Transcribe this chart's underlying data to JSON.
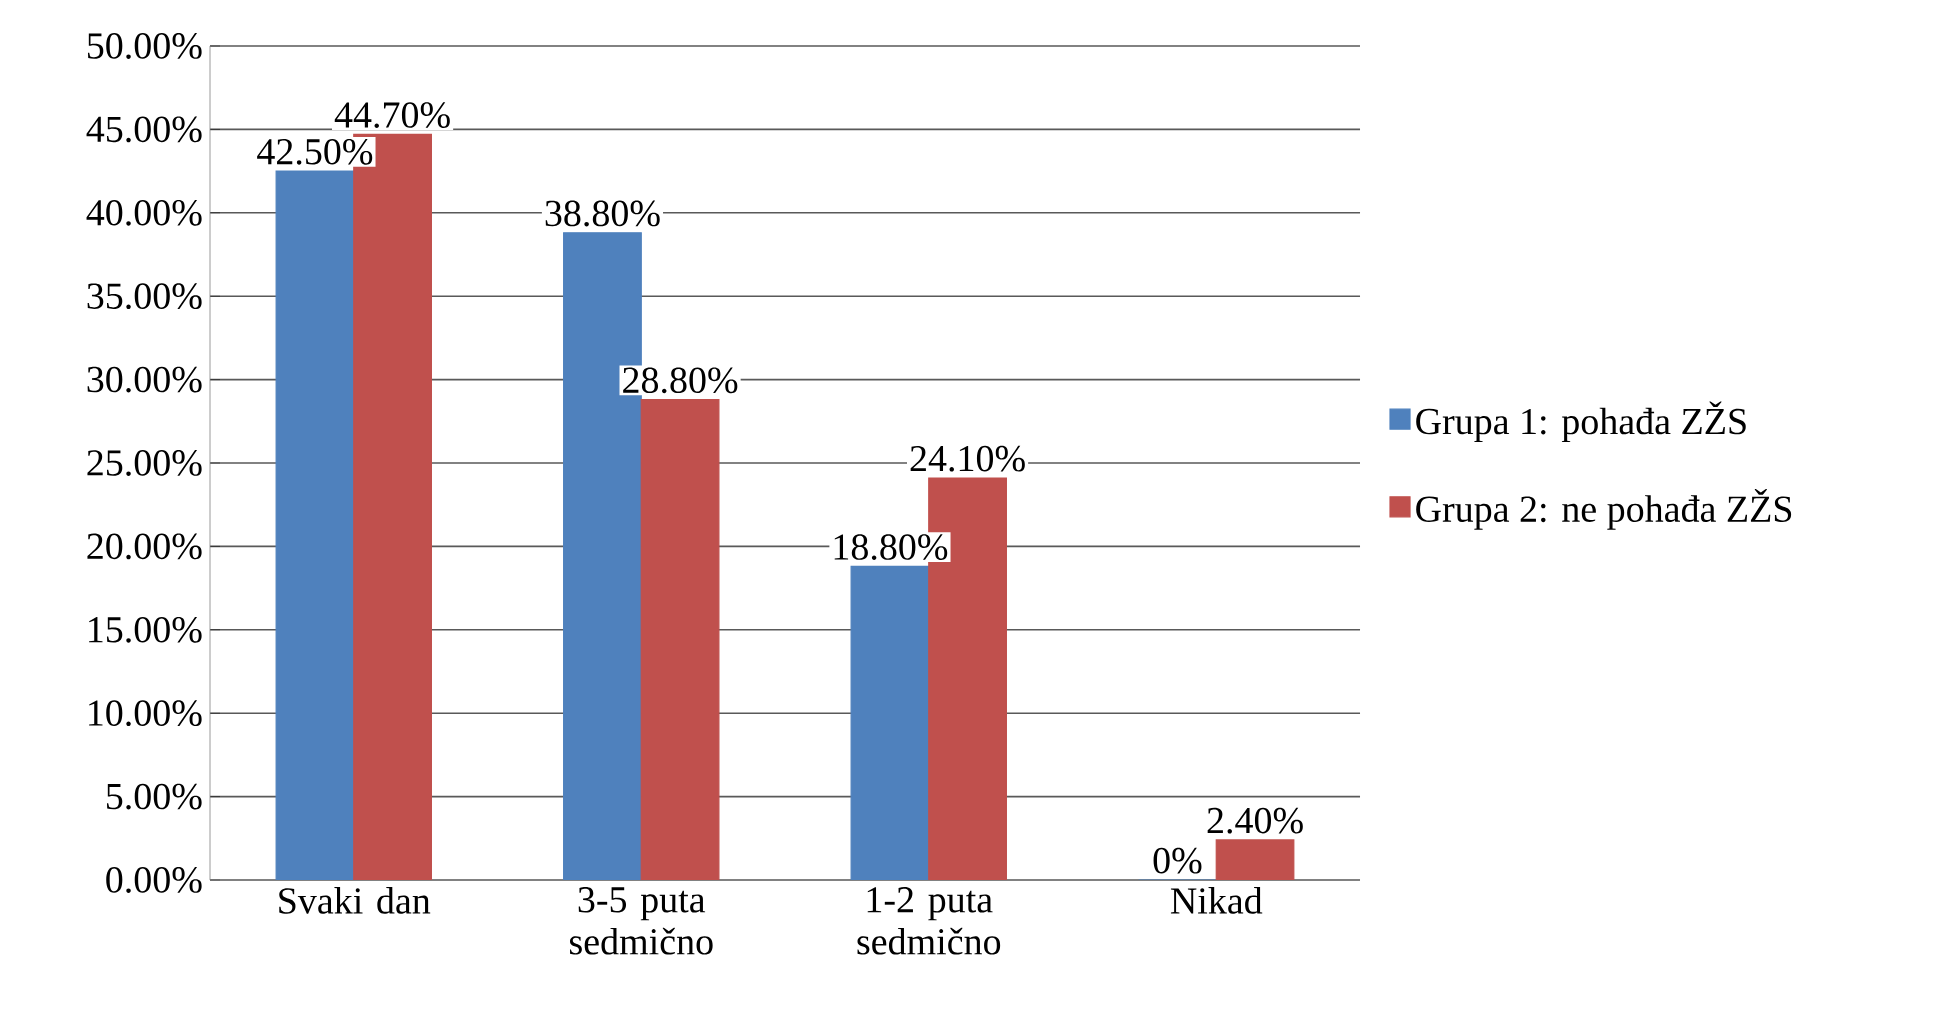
{
  "chart_data": {
    "type": "bar",
    "categories": [
      "Svaki dan",
      "3-5 puta sedmično",
      "1-2 puta sedmično",
      "Nikad"
    ],
    "series": [
      {
        "name": "Grupa 1: pohađa ZŽS",
        "color": "#4f81bd",
        "values": [
          42.5,
          38.8,
          18.8,
          0
        ],
        "value_labels": [
          "42.50%",
          "38.80%",
          "18.80%",
          "0%"
        ]
      },
      {
        "name": "Grupa 2: ne pohađa ZŽS",
        "color": "#c0504d",
        "values": [
          44.7,
          28.8,
          24.1,
          2.4
        ],
        "value_labels": [
          "44.70%",
          "28.80%",
          "24.10%",
          "2.40%"
        ]
      }
    ],
    "ylim": [
      0,
      50
    ],
    "yticks": [
      {
        "value": 0,
        "label": "0.00%"
      },
      {
        "value": 5,
        "label": "5.00%"
      },
      {
        "value": 10,
        "label": "10.00%"
      },
      {
        "value": 15,
        "label": "15.00%"
      },
      {
        "value": 20,
        "label": "20.00%"
      },
      {
        "value": 25,
        "label": "25.00%"
      },
      {
        "value": 30,
        "label": "30.00%"
      },
      {
        "value": 35,
        "label": "35.00%"
      },
      {
        "value": 40,
        "label": "40.00%"
      },
      {
        "value": 45,
        "label": "45.00%"
      },
      {
        "value": 50,
        "label": "50.00%"
      }
    ],
    "grid": "y",
    "legend": "right"
  }
}
